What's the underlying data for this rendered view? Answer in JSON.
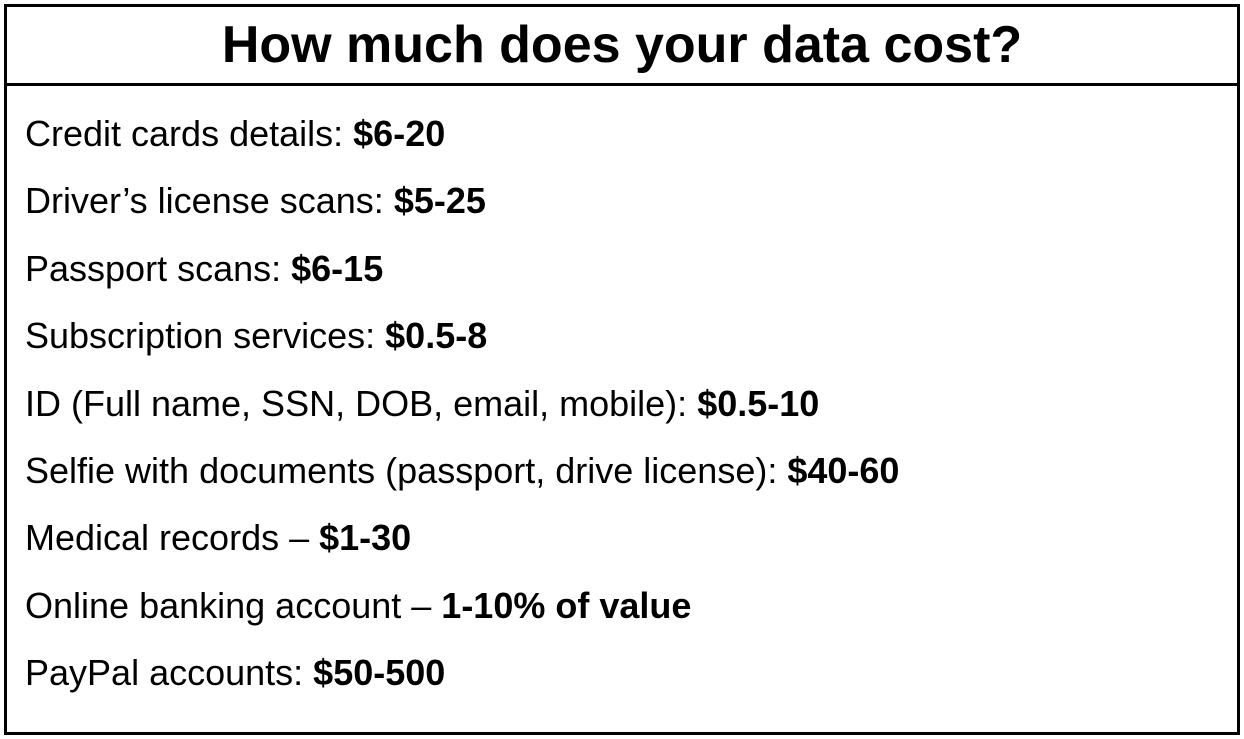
{
  "title": "How much does your data cost?",
  "text_color": "#000000",
  "background_color": "#ffffff",
  "border_color": "#000000",
  "title_fontsize": 52,
  "row_fontsize": 36,
  "items": [
    {
      "label": "Credit cards details",
      "separator": ": ",
      "value": "$6-20"
    },
    {
      "label": "Driver’s license scans",
      "separator": ": ",
      "value": "$5-25"
    },
    {
      "label": "Passport scans",
      "separator": ": ",
      "value": "$6-15"
    },
    {
      "label": "Subscription services",
      "separator": ": ",
      "value": "$0.5-8"
    },
    {
      "label": "ID (Full name, SSN, DOB, email, mobile)",
      "separator": ": ",
      "value": "$0.5-10"
    },
    {
      "label": "Selfie with documents (passport, drive license)",
      "separator": ": ",
      "value": "$40-60"
    },
    {
      "label": "Medical records",
      "separator": " – ",
      "value": "$1-30"
    },
    {
      "label": "Online banking account",
      "separator": " – ",
      "value": "1-10% of value"
    },
    {
      "label": "PayPal accounts",
      "separator": ": ",
      "value": "$50-500"
    }
  ]
}
